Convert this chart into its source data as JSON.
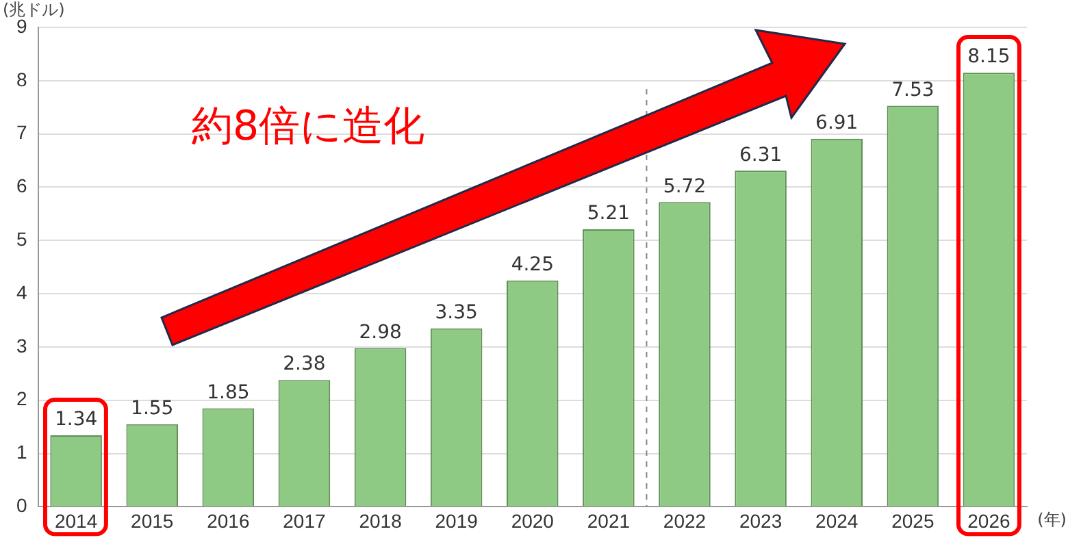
{
  "chart_data": {
    "type": "bar",
    "ylabel": "(兆ドル)",
    "xlabel": "(年)",
    "categories": [
      "2014",
      "2015",
      "2016",
      "2017",
      "2018",
      "2019",
      "2020",
      "2021",
      "2022",
      "2023",
      "2024",
      "2025",
      "2026"
    ],
    "values": [
      1.34,
      1.55,
      1.85,
      2.38,
      2.98,
      3.35,
      4.25,
      5.21,
      5.72,
      6.31,
      6.91,
      7.53,
      8.15
    ],
    "color": "#8fca84",
    "ylim": [
      0,
      9
    ],
    "yticks": [
      0,
      1,
      2,
      3,
      4,
      5,
      6,
      7,
      8,
      9
    ],
    "grid": "y",
    "legend": false,
    "data_labels": true,
    "ref_lines": [
      {
        "axis": "x",
        "value": "2022",
        "line_style": "dashed",
        "color": "#888888"
      }
    ],
    "annotations": [
      "約8倍に造化"
    ]
  }
}
